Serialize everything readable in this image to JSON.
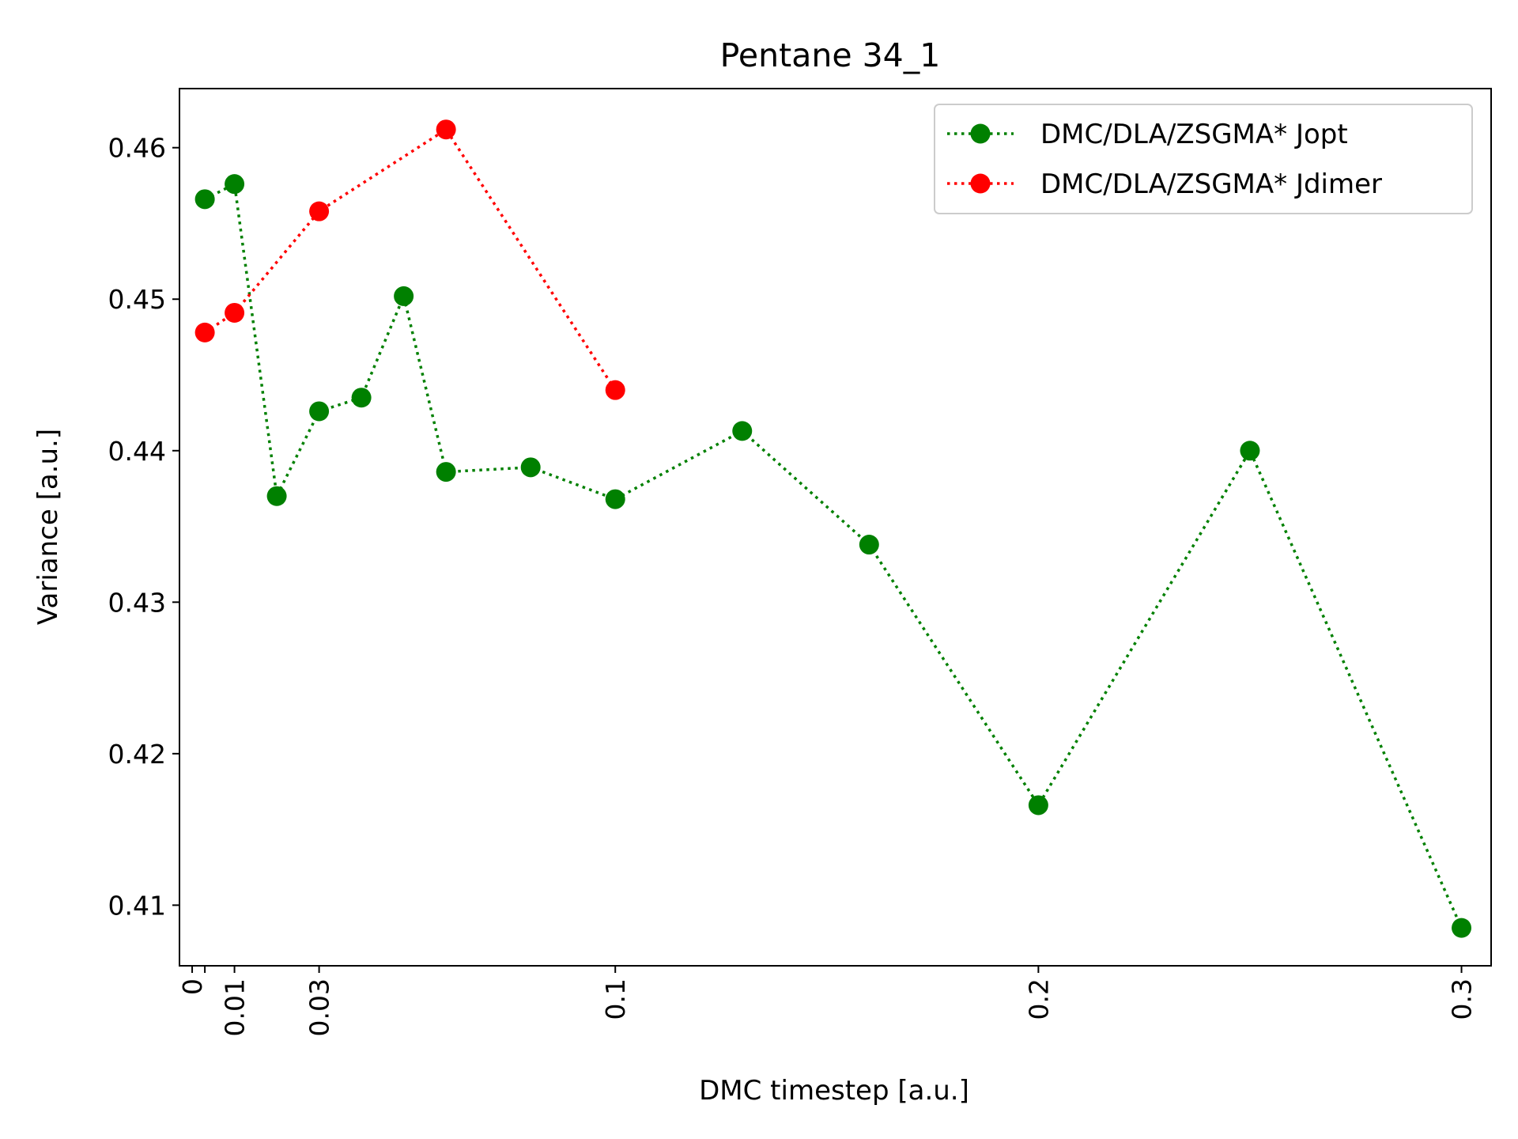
{
  "chart_data": {
    "type": "line",
    "title": "Pentane 34_1",
    "xlabel": "DMC timestep [a.u.]",
    "ylabel": "Variance [a.u.]",
    "xlim": [
      -0.003,
      0.307
    ],
    "ylim": [
      0.406,
      0.4639
    ],
    "x_ticks": [
      0,
      0.003,
      0.01,
      0.03,
      0.1,
      0.2,
      0.3
    ],
    "x_tick_labels": [
      "0",
      "",
      "0.01",
      "0.03",
      "0.1",
      "0.2",
      "0.3"
    ],
    "y_ticks": [
      0.41,
      0.42,
      0.43,
      0.44,
      0.45,
      0.46
    ],
    "y_tick_labels": [
      "0.41",
      "0.42",
      "0.43",
      "0.44",
      "0.45",
      "0.46"
    ],
    "grid": false,
    "legend_position": "top-right",
    "series": [
      {
        "name": "DMC/DLA/ZSGMA* Jopt",
        "color": "#008000",
        "line_style": "dotted",
        "marker": "circle",
        "x": [
          0.003,
          0.01,
          0.02,
          0.03,
          0.04,
          0.05,
          0.06,
          0.08,
          0.1,
          0.13,
          0.16,
          0.2,
          0.25,
          0.3
        ],
        "y": [
          0.4566,
          0.4576,
          0.437,
          0.4426,
          0.4435,
          0.4502,
          0.4386,
          0.4389,
          0.4368,
          0.4413,
          0.4338,
          0.4166,
          0.44,
          0.4085
        ]
      },
      {
        "name": "DMC/DLA/ZSGMA* Jdimer",
        "color": "#ff0000",
        "line_style": "dotted",
        "marker": "circle",
        "x": [
          0.003,
          0.01,
          0.03,
          0.06,
          0.1
        ],
        "y": [
          0.4478,
          0.4491,
          0.4558,
          0.4612,
          0.444
        ]
      }
    ]
  }
}
